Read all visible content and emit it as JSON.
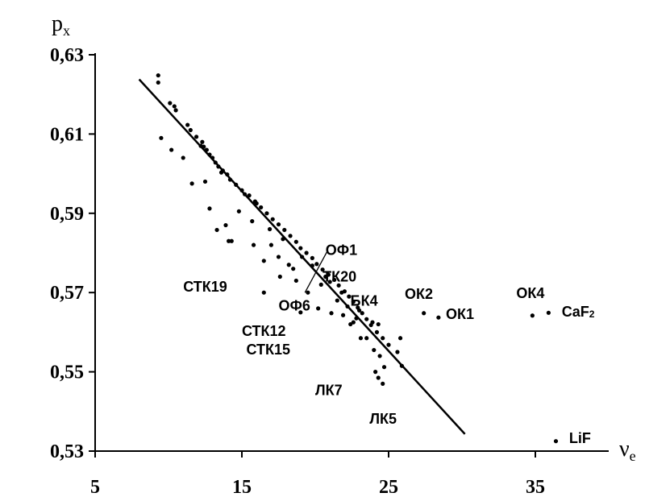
{
  "chart_data": {
    "type": "scatter",
    "y_axis": {
      "label": "p",
      "label_sub": "x",
      "ylim": [
        0.53,
        0.63
      ],
      "ticks": [
        "0,53",
        "0,55",
        "0,57",
        "0,59",
        "0,61",
        "0,63"
      ],
      "tick_values": [
        0.53,
        0.55,
        0.57,
        0.59,
        0.61,
        0.63
      ]
    },
    "x_axis": {
      "label": "ν",
      "label_sub": "e",
      "xlim": [
        5,
        40
      ],
      "ticks": [
        "5",
        "15",
        "25",
        "35"
      ],
      "tick_values": [
        5,
        15,
        25,
        35
      ]
    },
    "grid": false,
    "fit_line": {
      "x": [
        8.0,
        30.2
      ],
      "y": [
        0.6238,
        0.5343
      ]
    },
    "points": [
      [
        9.3,
        0.6248
      ],
      [
        9.3,
        0.623
      ],
      [
        10.1,
        0.6178
      ],
      [
        10.4,
        0.617
      ],
      [
        10.5,
        0.616
      ],
      [
        11.3,
        0.6123
      ],
      [
        11.5,
        0.611
      ],
      [
        11.9,
        0.6093
      ],
      [
        12.3,
        0.608
      ],
      [
        12.4,
        0.6068
      ],
      [
        12.6,
        0.606
      ],
      [
        12.8,
        0.6048
      ],
      [
        13.0,
        0.604
      ],
      [
        13.2,
        0.6028
      ],
      [
        13.4,
        0.6018
      ],
      [
        13.7,
        0.6008
      ],
      [
        14.0,
        0.5998
      ],
      [
        14.2,
        0.5985
      ],
      [
        14.6,
        0.5972
      ],
      [
        15.0,
        0.5958
      ],
      [
        15.5,
        0.5945
      ],
      [
        15.9,
        0.593
      ],
      [
        16.3,
        0.5915
      ],
      [
        16.7,
        0.59
      ],
      [
        17.1,
        0.5885
      ],
      [
        17.5,
        0.5872
      ],
      [
        17.9,
        0.5858
      ],
      [
        18.3,
        0.5843
      ],
      [
        18.7,
        0.5828
      ],
      [
        19.0,
        0.5812
      ],
      [
        19.4,
        0.58
      ],
      [
        19.8,
        0.5787
      ],
      [
        20.1,
        0.5772
      ],
      [
        20.5,
        0.5758
      ],
      [
        20.9,
        0.5745
      ],
      [
        21.3,
        0.5732
      ],
      [
        21.6,
        0.5718
      ],
      [
        22.0,
        0.5703
      ],
      [
        22.3,
        0.569
      ],
      [
        22.6,
        0.5677
      ],
      [
        22.9,
        0.5662
      ],
      [
        23.2,
        0.5648
      ],
      [
        23.5,
        0.5633
      ],
      [
        23.8,
        0.5618
      ],
      [
        24.2,
        0.56
      ],
      [
        24.6,
        0.5585
      ],
      [
        25.0,
        0.5568
      ],
      [
        25.6,
        0.555
      ],
      [
        9.5,
        0.609
      ],
      [
        10.2,
        0.606
      ],
      [
        11.0,
        0.604
      ],
      [
        11.6,
        0.5975
      ],
      [
        12.8,
        0.5912
      ],
      [
        13.3,
        0.5858
      ],
      [
        14.3,
        0.583
      ],
      [
        15.8,
        0.582
      ],
      [
        16.5,
        0.578
      ],
      [
        17.5,
        0.579
      ],
      [
        18.2,
        0.577
      ],
      [
        18.7,
        0.573
      ],
      [
        19.0,
        0.565
      ],
      [
        20.2,
        0.566
      ],
      [
        21.1,
        0.5648
      ],
      [
        21.9,
        0.5643
      ],
      [
        22.6,
        0.5625
      ],
      [
        23.5,
        0.5585
      ],
      [
        24.0,
        0.5555
      ],
      [
        24.4,
        0.554
      ],
      [
        24.7,
        0.5512
      ],
      [
        24.3,
        0.5485
      ],
      [
        24.6,
        0.547
      ],
      [
        24.1,
        0.55
      ],
      [
        23.1,
        0.5585
      ],
      [
        22.4,
        0.562
      ],
      [
        21.5,
        0.568
      ],
      [
        20.4,
        0.572
      ],
      [
        17.6,
        0.574
      ],
      [
        16.5,
        0.57
      ],
      [
        13.9,
        0.587
      ],
      [
        12.5,
        0.598
      ],
      [
        14.8,
        0.5905
      ],
      [
        15.7,
        0.588
      ],
      [
        16.9,
        0.586
      ],
      [
        17.8,
        0.5835
      ],
      [
        19.1,
        0.579
      ],
      [
        20.7,
        0.574
      ],
      [
        21.8,
        0.57
      ],
      [
        22.8,
        0.5635
      ],
      [
        23.9,
        0.5625
      ],
      [
        24.3,
        0.562
      ],
      [
        25.9,
        0.5515
      ],
      [
        25.8,
        0.5585
      ],
      [
        27.4,
        0.5648
      ],
      [
        28.4,
        0.5637
      ],
      [
        34.8,
        0.5642
      ],
      [
        35.9,
        0.5649
      ],
      [
        36.4,
        0.5325
      ],
      [
        14.1,
        0.583
      ],
      [
        17.0,
        0.582
      ],
      [
        18.5,
        0.576
      ],
      [
        19.5,
        0.57
      ],
      [
        12.2,
        0.607
      ],
      [
        13.6,
        0.6003
      ],
      [
        15.2,
        0.5948
      ],
      [
        16.0,
        0.5925
      ],
      [
        19.8,
        0.5768
      ],
      [
        21.0,
        0.5727
      ],
      [
        22.2,
        0.5665
      ],
      [
        23.0,
        0.5655
      ]
    ],
    "annotations": [
      {
        "text": "ОФ1",
        "x": 20.7,
        "y": 0.5795,
        "pointer_to": [
          19.3,
          0.57
        ],
        "pointer_from": [
          20.8,
          0.5803
        ]
      },
      {
        "text": "СТК19",
        "x": 11.0,
        "y": 0.5702
      },
      {
        "text": "ТК20",
        "x": 20.5,
        "y": 0.5728
      },
      {
        "text": "ОФ6",
        "x": 17.5,
        "y": 0.5655
      },
      {
        "text": "БК4",
        "x": 22.4,
        "y": 0.5667
      },
      {
        "text": "ОК2",
        "x": 26.1,
        "y": 0.5684
      },
      {
        "text": "ОК1",
        "x": 28.9,
        "y": 0.5633
      },
      {
        "text": "ОК4",
        "x": 33.7,
        "y": 0.5686
      },
      {
        "text": "CaF",
        "x": 36.8,
        "y": 0.5639,
        "sub": "2"
      },
      {
        "text": "СТК12",
        "x": 15.0,
        "y": 0.5591
      },
      {
        "text": "СТК15",
        "x": 15.3,
        "y": 0.5544
      },
      {
        "text": "ЛК7",
        "x": 20.0,
        "y": 0.5441
      },
      {
        "text": "ЛК5",
        "x": 23.7,
        "y": 0.5369
      },
      {
        "text": "LiF",
        "x": 37.3,
        "y": 0.532
      }
    ]
  }
}
